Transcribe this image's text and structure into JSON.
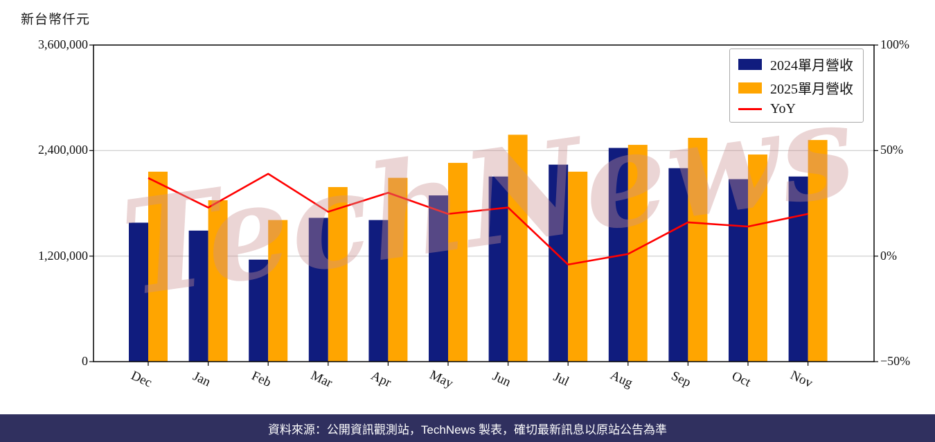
{
  "unit_label": "新台幣仟元",
  "watermark": "TechNews",
  "footer": {
    "text": "資料來源：公開資訊觀測站，TechNews 製表，確切最新訊息以原站公告為準"
  },
  "colors": {
    "bar_2024": "#101c7e",
    "bar_2025": "#ffa500",
    "yoy_line": "#ff0000",
    "footer_bg": "#30305f",
    "watermark_pink": "#cb9090",
    "gridline": "#c9c9c9"
  },
  "chart_data": {
    "type": "bar",
    "subtype": "grouped-bars-with-line",
    "title": "",
    "ylabel": "新台幣仟元",
    "grid": true,
    "legend_position": "top-right",
    "categories": [
      "Dec",
      "Jan",
      "Feb",
      "Mar",
      "Apr",
      "May",
      "Jun",
      "Jul",
      "Aug",
      "Sep",
      "Oct",
      "Nov"
    ],
    "series": [
      {
        "name": "2024單月營收",
        "type": "bar",
        "color": "#101c7e",
        "axis": "left",
        "values": [
          1580000,
          1490000,
          1160000,
          1635000,
          1610000,
          1890000,
          2105000,
          2240000,
          2430000,
          2200000,
          2075000,
          2105000
        ]
      },
      {
        "name": "2025單月營收",
        "type": "bar",
        "color": "#ffa500",
        "axis": "left",
        "values": [
          2160000,
          1835000,
          1610000,
          1985000,
          2090000,
          2260000,
          2580000,
          2160000,
          2465000,
          2545000,
          2355000,
          2520000
        ]
      },
      {
        "name": "YoY",
        "type": "line",
        "color": "#ff0000",
        "axis": "right",
        "values": [
          37,
          23,
          39,
          21,
          30,
          20,
          23,
          -4,
          1,
          16,
          14,
          20
        ]
      }
    ],
    "left_axis": {
      "min": 0,
      "max": 3600000,
      "ticks": [
        {
          "value": 0,
          "label": "0"
        },
        {
          "value": 1200000,
          "label": "1,200,000"
        },
        {
          "value": 2400000,
          "label": "2,400,000"
        },
        {
          "value": 3600000,
          "label": "3,600,000"
        }
      ]
    },
    "right_axis": {
      "min": -50,
      "max": 100,
      "ticks": [
        {
          "value": -50,
          "label": "−50%"
        },
        {
          "value": 0,
          "label": "0%"
        },
        {
          "value": 50,
          "label": "50%"
        },
        {
          "value": 100,
          "label": "100%"
        }
      ]
    }
  }
}
